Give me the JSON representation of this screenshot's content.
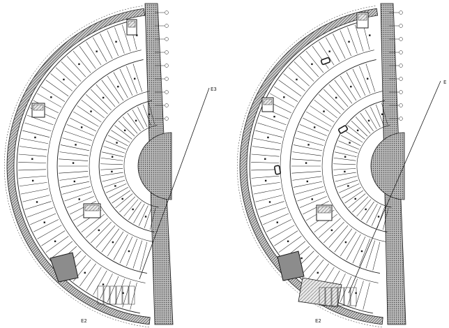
{
  "colors": {
    "line": "#1a1a1a",
    "hatch": "#555555",
    "ramp_fill": "#8c8c8c",
    "background": "#ffffff"
  },
  "plans": [
    {
      "name": "plan-left",
      "reference_label": "E3",
      "bottom_label": "E2",
      "has_car_icons": false
    },
    {
      "name": "plan-right",
      "reference_label": "E",
      "bottom_label": "E2",
      "has_car_icons": true
    }
  ]
}
